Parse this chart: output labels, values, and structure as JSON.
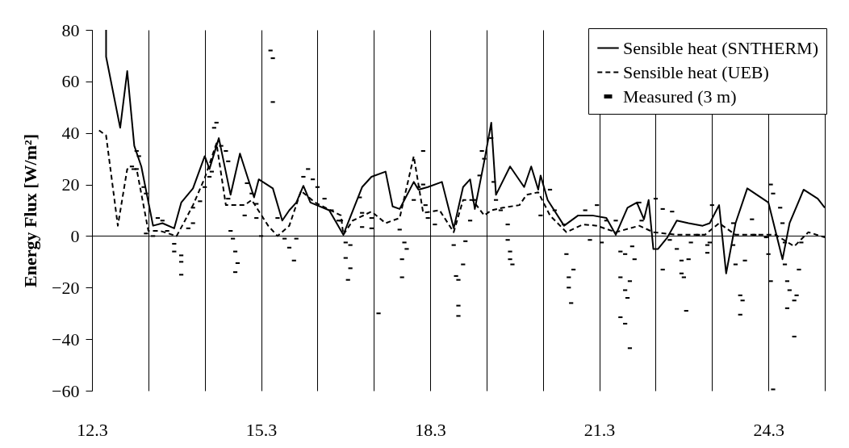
{
  "chart_data": {
    "type": "line",
    "ylabel": "Energy Flux [W/m²]",
    "xlim": [
      "--03-12",
      "--03-25"
    ],
    "ylim": [
      -60,
      80
    ],
    "xticks": [
      {
        "value": "--03-12",
        "label": "12.3"
      },
      {
        "value": "--03-13",
        "label": null
      },
      {
        "value": "--03-14",
        "label": null
      },
      {
        "value": "--03-15",
        "label": "15.3"
      },
      {
        "value": "--03-16",
        "label": null
      },
      {
        "value": "--03-17",
        "label": null
      },
      {
        "value": "--03-18",
        "label": "18.3"
      },
      {
        "value": "--03-19",
        "label": null
      },
      {
        "value": "--03-20",
        "label": null
      },
      {
        "value": "--03-21",
        "label": "21.3"
      },
      {
        "value": "--03-22",
        "label": null
      },
      {
        "value": "--03-23",
        "label": null
      },
      {
        "value": "--03-24",
        "label": "24.3"
      },
      {
        "value": "--03-25",
        "label": null
      }
    ],
    "yticks": [
      -60,
      -40,
      -20,
      0,
      20,
      40,
      60,
      80
    ],
    "grid": "x",
    "legend": "top right",
    "ref_lines": [
      {
        "axis": "y",
        "value": 0,
        "color": "#000000"
      }
    ],
    "series": [
      {
        "name": "Sensible heat (SNTHERM)",
        "color": "#000000",
        "line_style": "solid",
        "x": [
          "--03-12T06:00",
          "--03-12T06:00",
          "--03-12T12:00",
          "--03-12T15:00",
          "--03-12T18:00",
          "--03-12T21:00",
          "--03-13T02:00",
          "--03-13T06:00",
          "--03-13T11:00",
          "--03-13T14:00",
          "--03-13T19:00",
          "--03-14T00:00",
          "--03-14T02:00",
          "--03-14T06:00",
          "--03-14T11:00",
          "--03-14T15:00",
          "--03-14T21:00",
          "--03-14T23:00",
          "--03-15T05:00",
          "--03-15T09:00",
          "--03-15T12:00",
          "--03-15T15:00",
          "--03-15T18:00",
          "--03-15T21:00",
          "--03-16T05:00",
          "--03-16T11:00",
          "--03-16T19:00",
          "--03-16T23:00",
          "--03-17T05:00",
          "--03-17T08:00",
          "--03-17T11:00",
          "--03-17T17:00",
          "--03-17T19:00",
          "--03-17T23:00",
          "--03-18T05:00",
          "--03-18T10:00",
          "--03-18T14:00",
          "--03-18T17:00",
          "--03-18T19:00",
          "--03-18T23:00",
          "--03-19T02:00",
          "--03-19T04:00",
          "--03-19T10:00",
          "--03-19T16:00",
          "--03-19T19:00",
          "--03-19T22:00",
          "--03-19T23:00",
          "--03-20T02:00",
          "--03-20T09:00",
          "--03-20T15:00",
          "--03-20T21:00",
          "--03-21T03:00",
          "--03-21T07:00",
          "--03-21T12:00",
          "--03-21T16:00",
          "--03-21T19:00",
          "--03-21T21:00",
          "--03-21T23:00",
          "--03-22T01:00",
          "--03-22T05:00",
          "--03-22T09:00",
          "--03-22T14:00",
          "--03-22T20:00",
          "--03-22T23:00",
          "--03-23T03:00",
          "--03-23T06:00",
          "--03-23T10:00",
          "--03-23T15:00",
          "--03-24T00:00",
          "--03-24T06:00",
          "--03-24T09:00",
          "--03-24T15:00",
          "--03-24T21:00",
          "--03-25T00:00"
        ],
        "values": [
          80,
          69.6,
          42,
          64,
          35,
          27,
          4,
          5,
          3,
          13,
          18.5,
          31,
          26,
          38,
          16,
          32,
          15,
          22,
          18.5,
          6,
          10,
          13,
          19.5,
          13,
          10,
          0.5,
          19,
          23,
          25,
          11.5,
          10.5,
          21,
          18,
          19,
          21,
          3,
          19,
          22,
          10.5,
          29,
          44,
          16,
          27,
          19,
          27,
          18,
          23.5,
          14,
          4,
          8,
          8,
          7,
          0.5,
          11,
          13,
          6.5,
          14,
          -5,
          -5,
          -0.5,
          6,
          5,
          4,
          5,
          12,
          -14.5,
          5,
          18.5,
          13,
          -9,
          5,
          18,
          14.5,
          11
        ]
      },
      {
        "name": "Sensible heat (UEB)",
        "color": "#000000",
        "line_style": "dashed",
        "x": [
          "--03-12T03:00",
          "--03-12T06:00",
          "--03-12T11:00",
          "--03-12T15:00",
          "--03-12T19:00",
          "--03-13T00:00",
          "--03-13T05:00",
          "--03-13T12:00",
          "--03-13T15:00",
          "--03-13T19:00",
          "--03-14T00:00",
          "--03-14T05:00",
          "--03-14T09:00",
          "--03-14T13:00",
          "--03-14T17:00",
          "--03-14T20:00",
          "--03-15T03:00",
          "--03-15T07:00",
          "--03-15T12:00",
          "--03-15T17:00",
          "--03-15T23:00",
          "--03-16T10:00",
          "--03-16T11:00",
          "--03-16T15:00",
          "--03-16T23:00",
          "--03-17T05:00",
          "--03-17T11:00",
          "--03-17T17:00",
          "--03-17T21:00",
          "--03-18T04:00",
          "--03-18T10:00",
          "--03-18T14:00",
          "--03-18T18:00",
          "--03-18T23:00",
          "--03-19T02:00",
          "--03-19T07:00",
          "--03-19T14:00",
          "--03-19T17:00",
          "--03-19T22:00",
          "--03-20T03:00",
          "--03-20T10:00",
          "--03-20T17:00",
          "--03-20T23:00",
          "--03-21T07:00",
          "--03-21T17:00",
          "--03-21T23:00",
          "--03-22T09:00",
          "--03-22T21:00",
          "--03-23T03:00",
          "--03-23T10:00",
          "--03-23T18:00",
          "--03-24T03:00",
          "--03-24T11:00",
          "--03-24T17:00",
          "--03-25T00:00"
        ],
        "values": [
          41,
          39,
          4,
          26,
          26,
          2,
          2,
          0,
          5,
          12,
          22.5,
          36,
          12,
          12,
          12,
          14,
          4,
          0,
          4,
          17.5,
          13,
          8,
          0.5,
          6,
          9.5,
          5,
          7,
          31,
          9,
          10,
          1.5,
          14,
          14,
          8,
          10,
          11,
          12,
          16,
          17,
          8,
          1.5,
          4.5,
          4,
          1.5,
          4,
          1.5,
          0.5,
          0.5,
          5,
          0.5,
          0.5,
          0.5,
          -4,
          1.5,
          -0.5
        ]
      },
      {
        "name": "Measured (3 m)",
        "color": "#000000",
        "type": "scatter",
        "marker": "square",
        "x": [
          "--03-12T19:00",
          "--03-12T20:00",
          "--03-12T17:00",
          "--03-12T19:00",
          "--03-12T22:00",
          "--03-12T23:00",
          "--03-12T23:00",
          "--03-13T02:00",
          "--03-13T04:00",
          "--03-13T06:00",
          "--03-13T08:00",
          "--03-13T11:00",
          "--03-13T14:00",
          "--03-13T14:00",
          "--03-13T14:00",
          "--03-13T11:00",
          "--03-13T17:00",
          "--03-13T19:00",
          "--03-13T19:00",
          "--03-13T22:00",
          "--03-14T00:00",
          "--03-14T02:00",
          "--03-14T03:00",
          "--03-14T04:00",
          "--03-14T05:00",
          "--03-14T07:00",
          "--03-14T09:00",
          "--03-14T10:00",
          "--03-14T10:00",
          "--03-14T11:00",
          "--03-14T12:00",
          "--03-14T13:00",
          "--03-14T14:00",
          "--03-14T13:00",
          "--03-14T17:00",
          "--03-14T18:00",
          "--03-14T20:00",
          "--03-14T22:00",
          "--03-14T22:00",
          "--03-15T00:00",
          "--03-15T04:00",
          "--03-15T05:00",
          "--03-15T05:00",
          "--03-15T07:00",
          "--03-15T10:00",
          "--03-15T12:00",
          "--03-15T14:00",
          "--03-15T15:00",
          "--03-15T18:00",
          "--03-15T20:00",
          "--03-15T22:00",
          "--03-16T00:00",
          "--03-16T03:00",
          "--03-16T06:00",
          "--03-16T09:00",
          "--03-16T10:00",
          "--03-16T12:00",
          "--03-16T14:00",
          "--03-16T12:00",
          "--03-16T14:00",
          "--03-16T13:00",
          "--03-16T18:00",
          "--03-16T19:00",
          "--03-16T19:00",
          "--03-16T23:00",
          "--03-16T23:00",
          "--03-17T02:00",
          "--03-17T11:00",
          "--03-17T13:00",
          "--03-17T14:00",
          "--03-17T12:00",
          "--03-17T12:00",
          "--03-17T17:00",
          "--03-17T19:00",
          "--03-17T21:00",
          "--03-17T21:00",
          "--03-17T22:00",
          "--03-17T23:00",
          "--03-18T02:00",
          "--03-18T10:00",
          "--03-18T11:00",
          "--03-18T12:00",
          "--03-18T12:00",
          "--03-18T12:00",
          "--03-18T14:00",
          "--03-18T15:00",
          "--03-18T17:00",
          "--03-18T19:00",
          "--03-18T21:00",
          "--03-18T22:00",
          "--03-18T23:00",
          "--03-19T02:00",
          "--03-19T03:00",
          "--03-19T04:00",
          "--03-19T06:00",
          "--03-19T09:00",
          "--03-19T09:00",
          "--03-19T10:00",
          "--03-19T10:00",
          "--03-19T11:00",
          "--03-19T23:00",
          "--03-20T03:00",
          "--03-20T05:00",
          "--03-20T09:00",
          "--03-20T10:00",
          "--03-20T11:00",
          "--03-20T13:00",
          "--03-20T11:00",
          "--03-20T12:00",
          "--03-20T18:00",
          "--03-20T20:00",
          "--03-20T23:00",
          "--03-21T03:00",
          "--03-21T01:00",
          "--03-21T07:00",
          "--03-21T09:00",
          "--03-21T11:00",
          "--03-21T14:00",
          "--03-21T15:00",
          "--03-21T09:00",
          "--03-21T11:00",
          "--03-21T13:00",
          "--03-21T12:00",
          "--03-21T09:00",
          "--03-21T11:00",
          "--03-21T13:00",
          "--03-21T17:00",
          "--03-21T18:00",
          "--03-22T00:00",
          "--03-22T03:00",
          "--03-22T07:00",
          "--03-22T03:00",
          "--03-22T06:00",
          "--03-22T09:00",
          "--03-22T11:00",
          "--03-22T11:00",
          "--03-22T12:00",
          "--03-22T13:00",
          "--03-22T14:00",
          "--03-22T15:00",
          "--03-22T18:00",
          "--03-22T22:00",
          "--03-22T22:00",
          "--03-22T23:00",
          "--03-23T00:00",
          "--03-23T09:00",
          "--03-23T09:00",
          "--03-23T10:00",
          "--03-23T12:00",
          "--03-23T13:00",
          "--03-23T12:00",
          "--03-23T14:00",
          "--03-23T17:00",
          "--03-23T18:00",
          "--03-23T23:00",
          "--03-24T00:00",
          "--03-24T01:00",
          "--03-24T01:00",
          "--03-24T02:00",
          "--03-24T02:00",
          "--03-24T05:00",
          "--03-24T06:00",
          "--03-24T07:00",
          "--03-24T07:00",
          "--03-24T08:00",
          "--03-24T09:00",
          "--03-24T11:00",
          "--03-24T08:00",
          "--03-24T11:00",
          "--03-24T12:00",
          "--03-24T13:00",
          "--03-24T14:00"
        ],
        "values": [
          33,
          31,
          27,
          26,
          19,
          16.5,
          1,
          0,
          7,
          6,
          2,
          -3,
          -7.5,
          -10,
          -15,
          -6,
          3,
          5,
          11,
          13.5,
          19,
          23,
          25,
          42,
          44,
          35,
          33,
          29,
          14.5,
          2,
          -1,
          -6,
          -10.5,
          -14,
          8,
          20.5,
          16.5,
          12.5,
          7,
          0,
          72,
          69,
          52,
          7,
          -1,
          -4.5,
          -9.5,
          -1,
          23,
          26,
          22,
          19,
          14.5,
          10,
          6,
          6,
          -2.5,
          -3.5,
          -8.5,
          -12.5,
          -17,
          15,
          9,
          3.5,
          7,
          3,
          -30,
          2.5,
          -2.5,
          -5,
          -9,
          -16,
          14,
          19,
          33,
          20,
          12,
          7,
          4.5,
          -3.5,
          -15.5,
          -17,
          -27,
          -31,
          -11,
          -2,
          6,
          14,
          23.5,
          33,
          30,
          38,
          21,
          14,
          10,
          4.5,
          -1.5,
          -6,
          -9,
          -11,
          8,
          18,
          10,
          4.5,
          -7,
          -16,
          -13,
          -20,
          -26,
          10,
          -1.5,
          12,
          6,
          -2.5,
          6,
          -6,
          -7,
          -4,
          -9,
          -16,
          -21,
          -17.5,
          -24,
          -31.5,
          -34,
          -43.5,
          13,
          6,
          14.5,
          10.5,
          9.5,
          -13,
          -1.5,
          -5,
          -9.5,
          -14.5,
          -16,
          -29,
          -9,
          -2.5,
          0.5,
          -3.5,
          -6.5,
          -2.5,
          12,
          5,
          -3.5,
          -11,
          -23,
          -25,
          -30.5,
          -9.5,
          6.5,
          0.5,
          -0.5,
          -7,
          -17.5,
          20,
          16.5,
          -59.5,
          11,
          5,
          -2.5,
          -11,
          -17.5,
          -21,
          -25,
          -28,
          -39,
          -23,
          -13,
          -2.5
        ]
      }
    ]
  }
}
